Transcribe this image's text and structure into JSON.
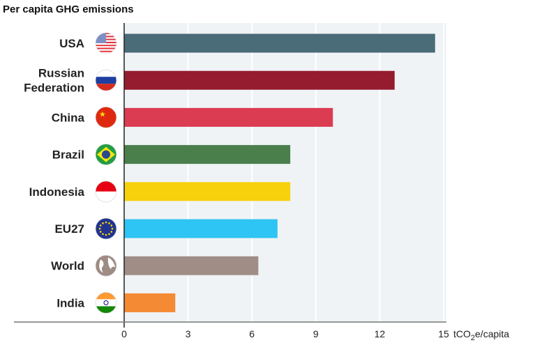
{
  "chart_data": {
    "type": "bar",
    "orientation": "horizontal",
    "title": "Per capita GHG emissions",
    "xlabel": "tCO2e/capita",
    "xlabel_parts": {
      "pre": "tCO",
      "sub": "2",
      "post": "e/capita"
    },
    "xlim": [
      0,
      15
    ],
    "xticks": [
      0,
      3,
      6,
      9,
      12,
      15
    ],
    "grid": true,
    "categories": [
      {
        "label": [
          "USA"
        ],
        "value": 14.6,
        "color": "#4a6b78",
        "flag": "usa-flag"
      },
      {
        "label": [
          "Russian",
          "Federation"
        ],
        "value": 12.7,
        "color": "#951b2e",
        "flag": "russia-flag"
      },
      {
        "label": [
          "China"
        ],
        "value": 9.8,
        "color": "#db3c52",
        "flag": "china-flag"
      },
      {
        "label": [
          "Brazil"
        ],
        "value": 7.8,
        "color": "#4a7f4c",
        "flag": "brazil-flag"
      },
      {
        "label": [
          "Indonesia"
        ],
        "value": 7.8,
        "color": "#f6d10c",
        "flag": "indonesia-flag"
      },
      {
        "label": [
          "EU27"
        ],
        "value": 7.2,
        "color": "#2ec4f3",
        "flag": "eu-flag"
      },
      {
        "label": [
          "World"
        ],
        "value": 6.3,
        "color": "#a08d86",
        "flag": "globe-icon"
      },
      {
        "label": [
          "India"
        ],
        "value": 2.4,
        "color": "#f58a34",
        "flag": "india-flag"
      }
    ]
  }
}
